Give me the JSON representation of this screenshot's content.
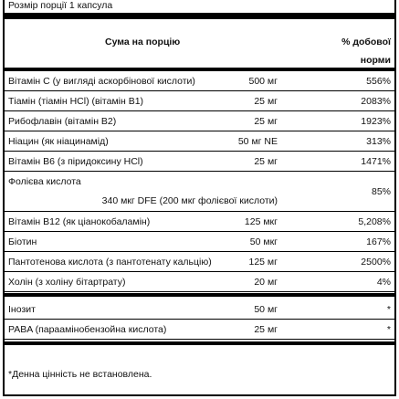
{
  "serving": "Розмір порції 1 капсула",
  "header": {
    "amount": "Сума на порцію",
    "dv": "% добової норми"
  },
  "rows": [
    {
      "name": "Вітамін С (у вигляді аскорбінової кислоти)",
      "amount": "500 мг",
      "dv": "556%"
    },
    {
      "name": "Тіамін (тіамін HCl) (вітамін B1)",
      "amount": "25 мг",
      "dv": "2083%"
    },
    {
      "name": "Рибофлавін (вітамін B2)",
      "amount": "25 мг",
      "dv": "1923%"
    },
    {
      "name": "Ніацин (як ніацинамід)",
      "amount": "50 мг NE",
      "dv": "313%"
    },
    {
      "name": "Вітамін B6 (з піридоксину HCl)",
      "amount": "25 мг",
      "dv": "1471%"
    },
    {
      "name": "Фолієва кислота",
      "amount": "340 мкг DFE (200 мкг фолієвої кислоти)",
      "dv": "85%"
    },
    {
      "name": "Вітамін B12 (як ціанокобаламін)",
      "amount": "125 мкг",
      "dv": "5,208%"
    },
    {
      "name": "Біотин",
      "amount": "50 мкг",
      "dv": "167%"
    },
    {
      "name": "Пантотенова кислота (з пантотенату кальцію)",
      "amount": "125 мг",
      "dv": "2500%"
    },
    {
      "name": "Холін (з холіну бітартрату)",
      "amount": "20 мг",
      "dv": "4%"
    },
    {
      "name": "Інозит",
      "amount": "50 мг",
      "dv": "*"
    },
    {
      "name": "PABA (параамінобензойна кислота)",
      "amount": "25 мг",
      "dv": "*"
    }
  ],
  "footnote": "*Денна цінність не встановлена."
}
